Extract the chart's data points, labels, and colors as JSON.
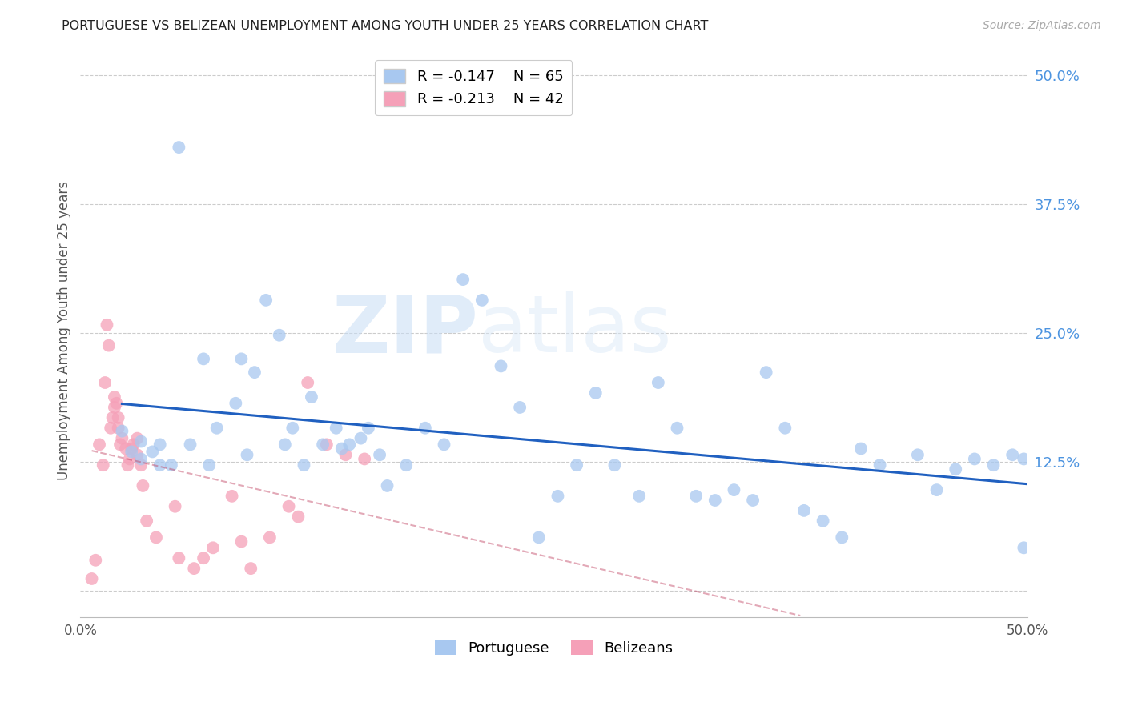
{
  "title": "PORTUGUESE VS BELIZEAN UNEMPLOYMENT AMONG YOUTH UNDER 25 YEARS CORRELATION CHART",
  "source": "Source: ZipAtlas.com",
  "ylabel": "Unemployment Among Youth under 25 years",
  "xlim": [
    0.0,
    0.5
  ],
  "ylim": [
    -0.025,
    0.53
  ],
  "yticks": [
    0.0,
    0.125,
    0.25,
    0.375,
    0.5
  ],
  "ytick_labels": [
    "",
    "12.5%",
    "25.0%",
    "37.5%",
    "50.0%"
  ],
  "xticks": [
    0.0,
    0.125,
    0.25,
    0.375,
    0.5
  ],
  "xtick_labels": [
    "0.0%",
    "",
    "",
    "",
    "50.0%"
  ],
  "portuguese_R": -0.147,
  "portuguese_N": 65,
  "belizean_R": -0.213,
  "belizean_N": 42,
  "portuguese_color": "#a8c8f0",
  "belizean_color": "#f5a0b8",
  "portuguese_line_color": "#2060c0",
  "belizean_line_color": "#c04060",
  "watermark_zip": "ZIP",
  "watermark_atlas": "atlas",
  "portuguese_x": [
    0.022,
    0.027,
    0.032,
    0.032,
    0.038,
    0.042,
    0.042,
    0.048,
    0.052,
    0.065,
    0.072,
    0.082,
    0.085,
    0.092,
    0.105,
    0.112,
    0.122,
    0.135,
    0.142,
    0.152,
    0.162,
    0.172,
    0.182,
    0.192,
    0.202,
    0.212,
    0.222,
    0.232,
    0.242,
    0.252,
    0.262,
    0.272,
    0.282,
    0.295,
    0.305,
    0.315,
    0.325,
    0.335,
    0.345,
    0.355,
    0.362,
    0.372,
    0.382,
    0.392,
    0.402,
    0.412,
    0.422,
    0.442,
    0.452,
    0.462,
    0.472,
    0.482,
    0.492,
    0.498,
    0.498,
    0.058,
    0.068,
    0.088,
    0.098,
    0.108,
    0.118,
    0.128,
    0.138,
    0.148,
    0.158
  ],
  "portuguese_y": [
    0.155,
    0.135,
    0.145,
    0.128,
    0.135,
    0.122,
    0.142,
    0.122,
    0.43,
    0.225,
    0.158,
    0.182,
    0.225,
    0.212,
    0.248,
    0.158,
    0.188,
    0.158,
    0.142,
    0.158,
    0.102,
    0.122,
    0.158,
    0.142,
    0.302,
    0.282,
    0.218,
    0.178,
    0.052,
    0.092,
    0.122,
    0.192,
    0.122,
    0.092,
    0.202,
    0.158,
    0.092,
    0.088,
    0.098,
    0.088,
    0.212,
    0.158,
    0.078,
    0.068,
    0.052,
    0.138,
    0.122,
    0.132,
    0.098,
    0.118,
    0.128,
    0.122,
    0.132,
    0.128,
    0.042,
    0.142,
    0.122,
    0.132,
    0.282,
    0.142,
    0.122,
    0.142,
    0.138,
    0.148,
    0.132
  ],
  "belizean_x": [
    0.006,
    0.008,
    0.01,
    0.012,
    0.013,
    0.014,
    0.015,
    0.016,
    0.017,
    0.018,
    0.018,
    0.019,
    0.02,
    0.02,
    0.021,
    0.022,
    0.024,
    0.025,
    0.026,
    0.027,
    0.028,
    0.03,
    0.03,
    0.032,
    0.033,
    0.035,
    0.04,
    0.05,
    0.052,
    0.06,
    0.065,
    0.07,
    0.08,
    0.085,
    0.09,
    0.1,
    0.11,
    0.115,
    0.12,
    0.13,
    0.14,
    0.15
  ],
  "belizean_y": [
    0.012,
    0.03,
    0.142,
    0.122,
    0.202,
    0.258,
    0.238,
    0.158,
    0.168,
    0.188,
    0.178,
    0.182,
    0.168,
    0.158,
    0.142,
    0.148,
    0.138,
    0.122,
    0.128,
    0.138,
    0.142,
    0.132,
    0.148,
    0.122,
    0.102,
    0.068,
    0.052,
    0.082,
    0.032,
    0.022,
    0.032,
    0.042,
    0.092,
    0.048,
    0.022,
    0.052,
    0.082,
    0.072,
    0.202,
    0.142,
    0.132,
    0.128
  ]
}
